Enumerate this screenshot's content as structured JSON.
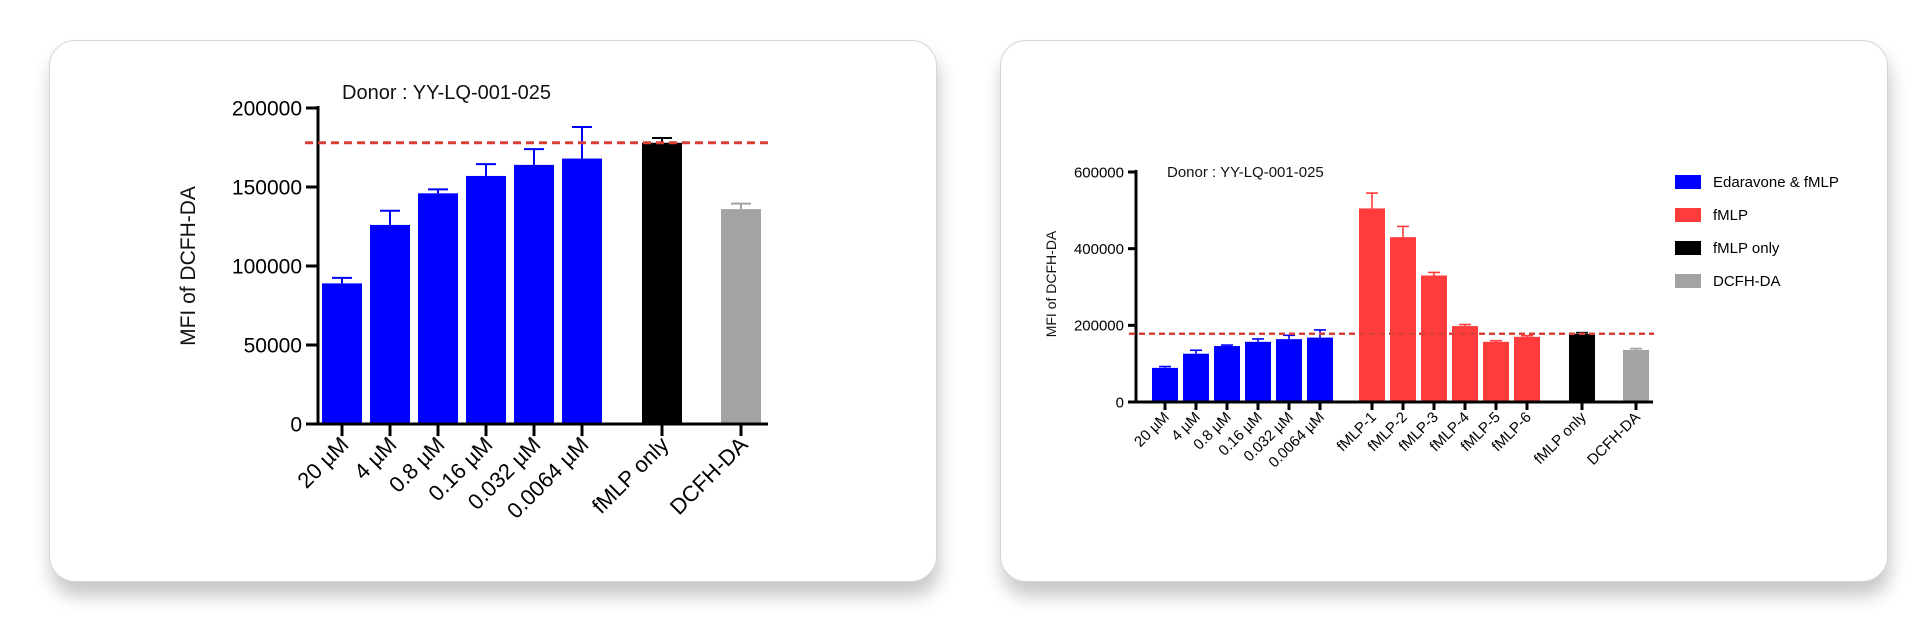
{
  "chart_data": [
    {
      "type": "bar",
      "title": "Donor : YY-LQ-001-025",
      "xlabel": "",
      "ylabel": "MFI of DCFH-DA",
      "ylim": [
        0,
        200000
      ],
      "yticks": [
        "0",
        "50000",
        "100000",
        "150000",
        "200000"
      ],
      "reference_line": {
        "value": 178000,
        "style": "dashed",
        "color": "#d9403a"
      },
      "categories": [
        "20 µM",
        "4 µM",
        "0.8 µM",
        "0.16 µM",
        "0.032 µM",
        "0.0064 µM",
        "fMLP only",
        "DCFH-DA"
      ],
      "values": [
        89000,
        126000,
        146000,
        157000,
        164000,
        168000,
        178000,
        136000
      ],
      "errors": [
        3500,
        9000,
        2500,
        7500,
        10000,
        20000,
        3000,
        3500
      ],
      "bar_groups": [
        0,
        0,
        0,
        0,
        0,
        0,
        1,
        2
      ]
    },
    {
      "type": "bar",
      "title": "Donor : YY-LQ-001-025",
      "xlabel": "",
      "ylabel": "MFI of DCFH-DA",
      "ylim": [
        0,
        600000
      ],
      "yticks": [
        "0",
        "200000",
        "400000",
        "600000"
      ],
      "reference_line": {
        "value": 178000,
        "style": "dashed",
        "color": "#d9403a"
      },
      "categories": [
        "20 µM",
        "4 µM",
        "0.8 µM",
        "0.16 µM",
        "0.032 µM",
        "0.0064 µM",
        "fMLP-1",
        "fMLP-2",
        "fMLP-3",
        "fMLP-4",
        "fMLP-5",
        "fMLP-6",
        "fMLP only",
        "DCFH-DA"
      ],
      "values": [
        89000,
        126000,
        146000,
        157000,
        164000,
        168000,
        505000,
        430000,
        330000,
        198000,
        157000,
        170000,
        178000,
        136000
      ],
      "errors": [
        3500,
        9000,
        2500,
        7500,
        10000,
        20000,
        40000,
        28000,
        8000,
        4000,
        3000,
        3000,
        3000,
        3500
      ],
      "bar_groups": [
        0,
        0,
        0,
        0,
        0,
        0,
        1,
        1,
        1,
        1,
        1,
        1,
        2,
        3
      ],
      "legend": {
        "position": "right",
        "entries": [
          {
            "label": "Edaravone & fMLP",
            "color": "#0000ff"
          },
          {
            "label": "fMLP",
            "color": "#ff3b3b"
          },
          {
            "label": "fMLP only",
            "color": "#000000"
          },
          {
            "label": "DCFH-DA",
            "color": "#a3a3a6"
          }
        ]
      }
    }
  ],
  "colors": {
    "edaravone": "#0000ff",
    "fmlp": "#ff3b3b",
    "fmlp_only": "#000000",
    "dcfh": "#a3a3a6",
    "reference": "#d9403a"
  }
}
